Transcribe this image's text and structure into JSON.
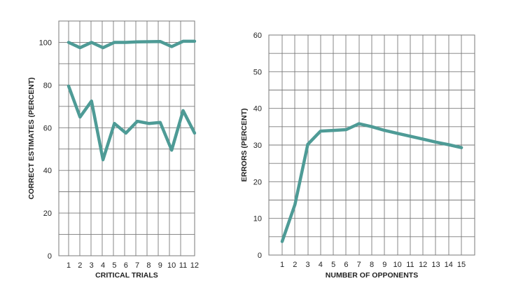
{
  "chart_data": [
    {
      "type": "line",
      "xlabel": "CRITICAL TRIALS",
      "ylabel": "CORRECT ESTIMATES (PERCENT)",
      "x": [
        1,
        2,
        3,
        4,
        5,
        6,
        7,
        8,
        9,
        10,
        11,
        12
      ],
      "xticks": [
        "1",
        "2",
        "3",
        "4",
        "5",
        "6",
        "7",
        "8",
        "9",
        "10",
        "11",
        "12"
      ],
      "yticks": [
        "0",
        "20",
        "40",
        "60",
        "80",
        "100"
      ],
      "ylim": [
        0,
        110
      ],
      "grid": true,
      "color": "#4e9b96",
      "series": [
        {
          "values": [
            100,
            97.5,
            100,
            97.5,
            100,
            100,
            100.2,
            100.3,
            100.4,
            98,
            100.5,
            100.5
          ]
        },
        {
          "values": [
            79.5,
            65,
            72.5,
            45,
            62,
            57.5,
            63,
            62,
            62.5,
            49.5,
            68,
            57.5
          ]
        }
      ]
    },
    {
      "type": "line",
      "xlabel": "NUMBER OF OPPONENTS",
      "ylabel": "ERRORS (PERCENT)",
      "x": [
        1,
        2,
        3,
        4,
        5,
        6,
        7,
        8,
        9,
        10,
        11,
        12,
        13,
        14,
        15
      ],
      "xticks": [
        "1",
        "2",
        "3",
        "4",
        "5",
        "6",
        "7",
        "8",
        "9",
        "10",
        "11",
        "12",
        "13",
        "14",
        "15"
      ],
      "yticks": [
        "0",
        "10",
        "20",
        "30",
        "40",
        "50",
        "60"
      ],
      "ylim": [
        0,
        60
      ],
      "grid": true,
      "color": "#4e9b96",
      "series": [
        {
          "values": [
            3.7,
            13.8,
            30.2,
            33.8,
            34,
            34.2,
            35.8,
            35,
            34,
            33.2,
            32.4,
            31.6,
            30.8,
            30.1,
            29.3
          ]
        }
      ]
    }
  ]
}
